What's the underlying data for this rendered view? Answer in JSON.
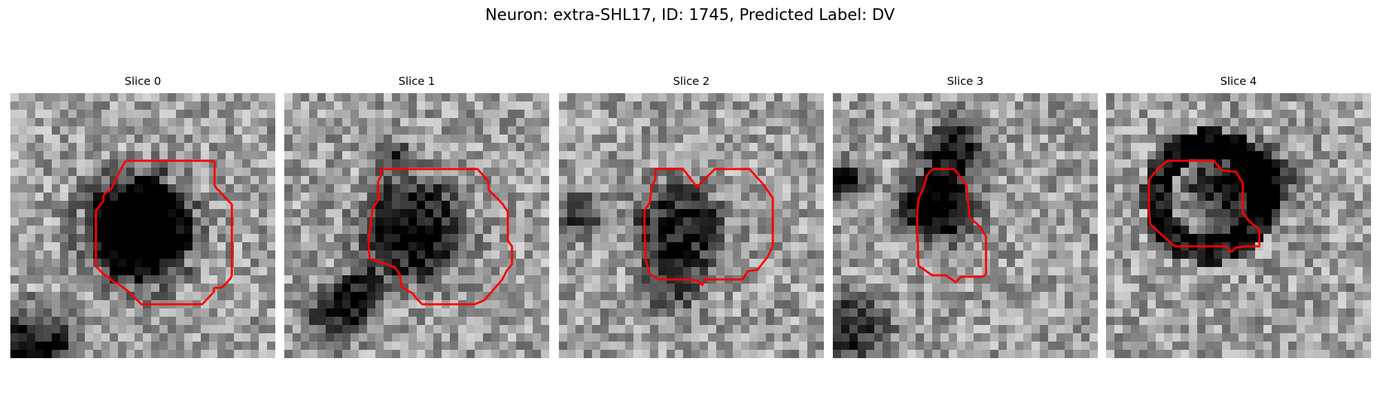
{
  "figure": {
    "title": "Neuron: extra-SHL17, ID: 1745, Predicted Label: DV"
  },
  "colors": {
    "contour": "#ff0000",
    "background": "#ffffff"
  },
  "panels": [
    {
      "title": "Slice 0",
      "nucleus_darkness": 1.0,
      "theme": "solid-dark-cell"
    },
    {
      "title": "Slice 1",
      "nucleus_darkness": 0.7,
      "theme": "textured-cell"
    },
    {
      "title": "Slice 2",
      "nucleus_darkness": 0.55,
      "theme": "grainy-cell"
    },
    {
      "title": "Slice 3",
      "nucleus_darkness": 0.8,
      "theme": "elongated-cell"
    },
    {
      "title": "Slice 4",
      "nucleus_darkness": 0.6,
      "theme": "ring-cell"
    }
  ]
}
